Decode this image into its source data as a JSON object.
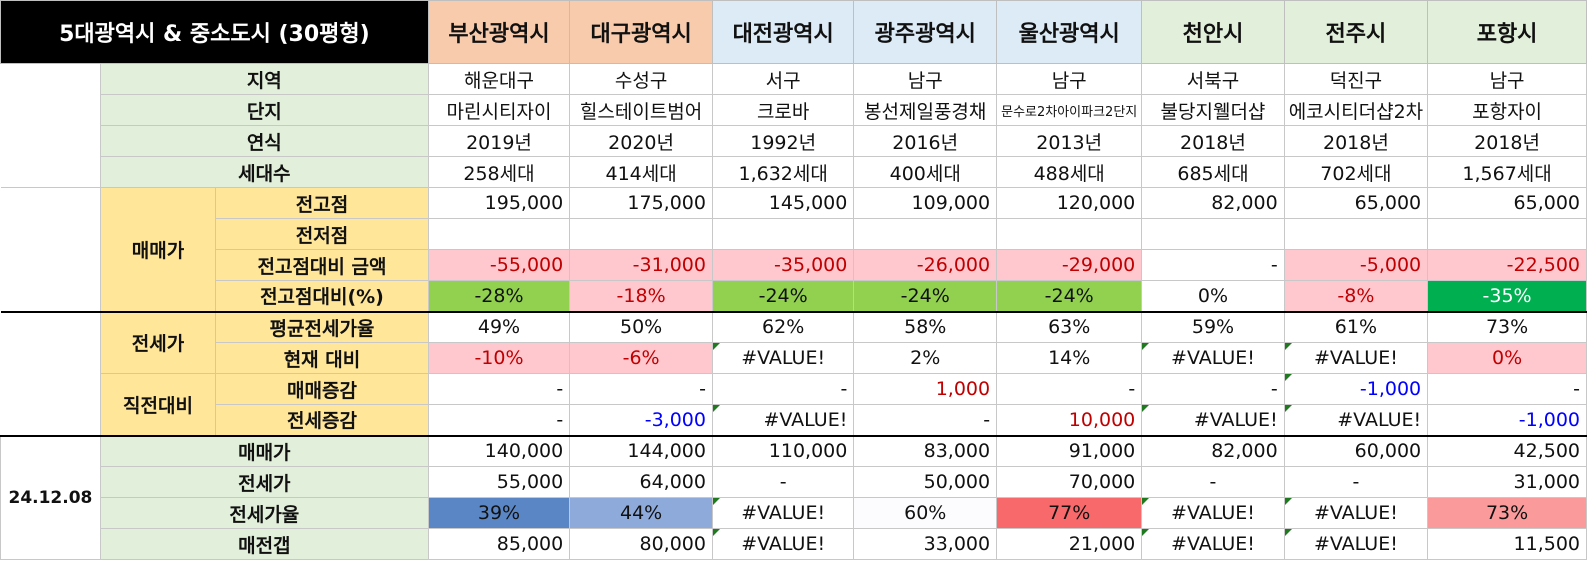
{
  "title": "5대광역시 & 중소도시 (30평형)",
  "cities": [
    "부산광역시",
    "대구광역시",
    "대전광역시",
    "광주광역시",
    "울산광역시",
    "천안시",
    "전주시",
    "포항시"
  ],
  "labels": {
    "region": "지역",
    "complex": "단지",
    "year": "연식",
    "households": "세대수",
    "sale_group": "매매가",
    "prev_high": "전고점",
    "prev_low": "전저점",
    "vs_high_amount": "전고점대비 금액",
    "vs_high_pct": "전고점대비(%)",
    "jeonse_group": "전세가",
    "avg_ratio": "평균전세가율",
    "vs_current": "현재 대비",
    "recent_group": "직전대비",
    "sale_change": "매매증감",
    "jeonse_change": "전세증감",
    "date": "24.12.08",
    "cur_sale": "매매가",
    "cur_jeonse": "전세가",
    "cur_ratio": "전세가율",
    "gap": "매전갭"
  },
  "rows": {
    "region": [
      "해운대구",
      "수성구",
      "서구",
      "남구",
      "남구",
      "서북구",
      "덕진구",
      "남구"
    ],
    "complex": [
      "마린시티자이",
      "힐스테이트범어",
      "크로바",
      "봉선제일풍경채",
      "문수로2차아이파크2단지",
      "불당지웰더샵",
      "에코시티더샵2차",
      "포항자이"
    ],
    "year": [
      "2019년",
      "2020년",
      "1992년",
      "2016년",
      "2013년",
      "2018년",
      "2018년",
      "2018년"
    ],
    "households": [
      "258세대",
      "414세대",
      "1,632세대",
      "400세대",
      "488세대",
      "685세대",
      "702세대",
      "1,567세대"
    ],
    "prev_high": [
      "195,000",
      "175,000",
      "145,000",
      "109,000",
      "120,000",
      "82,000",
      "65,000",
      "65,000"
    ],
    "prev_low": [
      "",
      "",
      "",
      "",
      "",
      "",
      "",
      ""
    ],
    "vs_high_amount": [
      "-55,000",
      "-31,000",
      "-35,000",
      "-26,000",
      "-29,000",
      "-",
      "-5,000",
      "-22,500"
    ],
    "vs_high_pct": [
      "-28%",
      "-18%",
      "-24%",
      "-24%",
      "-24%",
      "0%",
      "-8%",
      "-35%"
    ],
    "avg_ratio": [
      "49%",
      "50%",
      "62%",
      "58%",
      "63%",
      "59%",
      "61%",
      "73%"
    ],
    "vs_current": [
      "-10%",
      "-6%",
      "#VALUE!",
      "2%",
      "14%",
      "#VALUE!",
      "#VALUE!",
      "0%"
    ],
    "sale_change": [
      "-",
      "-",
      "-",
      "1,000",
      "-",
      "-",
      "-1,000",
      "-"
    ],
    "jeonse_change": [
      "-",
      "-3,000",
      "#VALUE!",
      "-",
      "10,000",
      "#VALUE!",
      "#VALUE!",
      "-1,000"
    ],
    "cur_sale": [
      "140,000",
      "144,000",
      "110,000",
      "83,000",
      "91,000",
      "82,000",
      "60,000",
      "42,500"
    ],
    "cur_jeonse": [
      "55,000",
      "64,000",
      "-",
      "50,000",
      "70,000",
      "-",
      "-",
      "31,000"
    ],
    "cur_ratio": [
      "39%",
      "44%",
      "#VALUE!",
      "60%",
      "77%",
      "#VALUE!",
      "#VALUE!",
      "73%"
    ],
    "gap": [
      "85,000",
      "80,000",
      "#VALUE!",
      "33,000",
      "21,000",
      "#VALUE!",
      "#VALUE!",
      "11,500"
    ]
  },
  "colors": {
    "header_orange": "#f8cbad",
    "header_blue": "#ddebf7",
    "header_green": "#e2efda",
    "label_green": "#e2efda",
    "group_yellow": "#ffe699",
    "neg_pink": "#ffc7ce",
    "good_green": "#92d050",
    "dark_green": "#00b050",
    "neg_text": "#c00000",
    "blue_text": "#0000ff"
  }
}
